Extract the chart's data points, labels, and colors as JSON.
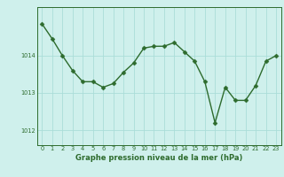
{
  "x": [
    0,
    1,
    2,
    3,
    4,
    5,
    6,
    7,
    8,
    9,
    10,
    11,
    12,
    13,
    14,
    15,
    16,
    17,
    18,
    19,
    20,
    21,
    22,
    23
  ],
  "y": [
    1014.85,
    1014.45,
    1014.0,
    1013.6,
    1013.3,
    1013.3,
    1013.15,
    1013.25,
    1013.55,
    1013.8,
    1014.2,
    1014.25,
    1014.25,
    1014.35,
    1014.1,
    1013.85,
    1013.3,
    1012.2,
    1013.15,
    1012.8,
    1012.8,
    1013.2,
    1013.85,
    1014.0
  ],
  "bg_color": "#cff0ec",
  "line_color": "#2d6b2d",
  "marker_color": "#2d6b2d",
  "grid_color": "#aaddd8",
  "axis_label_color": "#2d6b2d",
  "xlabel": "Graphe pression niveau de la mer (hPa)",
  "ylabel_ticks": [
    1012,
    1013,
    1014
  ],
  "ylim": [
    1011.6,
    1015.3
  ],
  "xlim": [
    -0.5,
    23.5
  ],
  "xticks": [
    0,
    1,
    2,
    3,
    4,
    5,
    6,
    7,
    8,
    9,
    10,
    11,
    12,
    13,
    14,
    15,
    16,
    17,
    18,
    19,
    20,
    21,
    22,
    23
  ],
  "border_color": "#2d6b2d",
  "line_width": 1.0,
  "marker_size": 2.5
}
